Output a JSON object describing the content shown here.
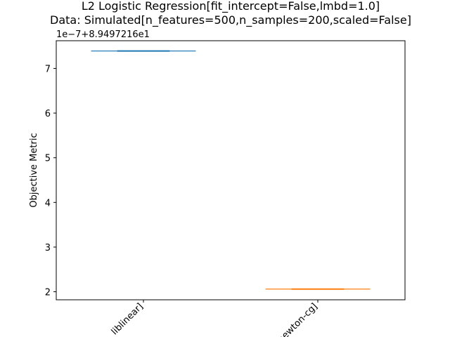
{
  "chart_data": {
    "type": "box",
    "title": "L2 Logistic Regression[fit_intercept=False,lmbd=1.0]",
    "subtitle": "Data: Simulated[n_features=500,n_samples=200,scaled=False]",
    "xlabel": "",
    "ylabel": "Objective Metric",
    "offset_text": "1e−7+8.9497216e1",
    "categories": [
      "liblinear]",
      "newton-cg]"
    ],
    "x_tick_labels": [
      "liblinear]",
      "newton-cg]"
    ],
    "y_ticks": [
      2,
      3,
      4,
      5,
      6,
      7
    ],
    "y_tick_labels": [
      "2",
      "3",
      "4",
      "5",
      "6",
      "7"
    ],
    "ylim": [
      1.82,
      7.62
    ],
    "grid": false,
    "series": [
      {
        "category": "liblinear]",
        "values": [
          7.39
        ],
        "color": "#1f77b4"
      },
      {
        "category": "newton-cg]",
        "values": [
          2.06
        ],
        "color": "#ff7f0e"
      }
    ]
  }
}
